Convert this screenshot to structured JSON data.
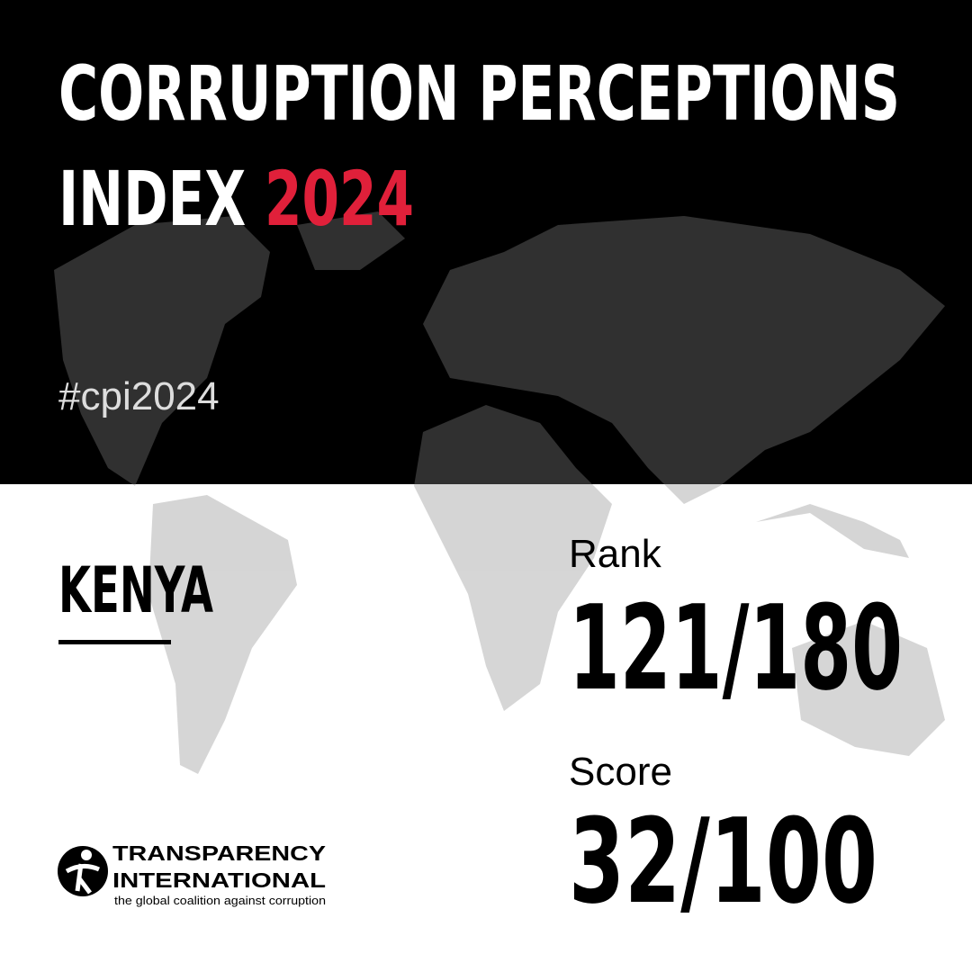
{
  "header": {
    "title_line_1": "CORRUPTION PERCEPTIONS",
    "title_line_2": "INDEX",
    "year": "2024",
    "hashtag": "#cpi2024"
  },
  "country": "KENYA",
  "rank": {
    "label": "Rank",
    "value": "121/180"
  },
  "score": {
    "label": "Score",
    "value": "32/100"
  },
  "logo": {
    "name_line_1": "TRANSPARENCY",
    "name_line_2": "INTERNATIONAL",
    "tagline": "the global coalition against corruption"
  }
}
